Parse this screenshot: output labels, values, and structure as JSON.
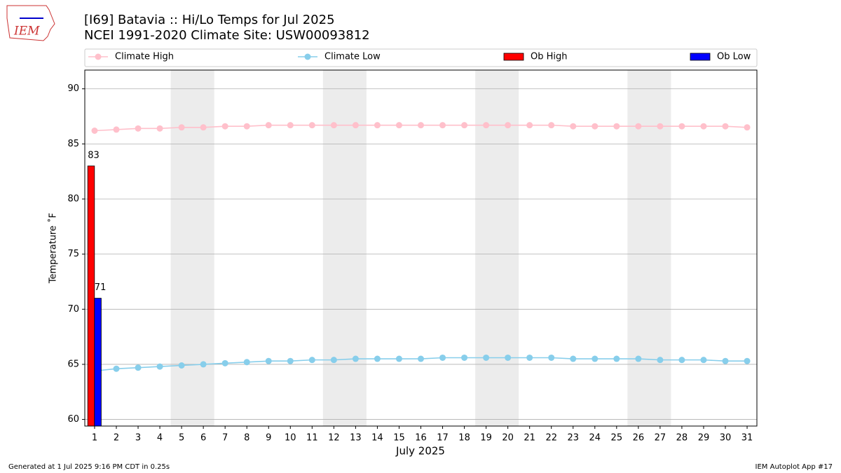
{
  "chart_data": {
    "type": "line_bar",
    "title": "[I69] Batavia :: Hi/Lo Temps for Jul 2025",
    "subtitle": "NCEI 1991-2020 Climate Site: USW00093812",
    "logo_text": "IEM",
    "xlabel": "July 2025",
    "ylabel": "Temperature ˚F",
    "footer_left": "Generated at 1 Jul 2025 9:16 PM CDT in 0.25s",
    "footer_right": "IEM Autoplot App #17",
    "x": [
      1,
      2,
      3,
      4,
      5,
      6,
      7,
      8,
      9,
      10,
      11,
      12,
      13,
      14,
      15,
      16,
      17,
      18,
      19,
      20,
      21,
      22,
      23,
      24,
      25,
      26,
      27,
      28,
      29,
      30,
      31
    ],
    "xlim": [
      0.55,
      31.45
    ],
    "xticks": [
      1,
      2,
      3,
      4,
      5,
      6,
      7,
      8,
      9,
      10,
      11,
      12,
      13,
      14,
      15,
      16,
      17,
      18,
      19,
      20,
      21,
      22,
      23,
      24,
      25,
      26,
      27,
      28,
      29,
      30,
      31
    ],
    "ylim": [
      59.4,
      91.7
    ],
    "yticks": [
      60,
      65,
      70,
      75,
      80,
      85,
      90
    ],
    "grid": true,
    "shaded_x": [
      [
        4.5,
        6.5
      ],
      [
        11.5,
        13.5
      ],
      [
        18.5,
        20.5
      ],
      [
        25.5,
        27.5
      ]
    ],
    "series": [
      {
        "name": "Climate High",
        "kind": "line",
        "color": "#ffc0cb",
        "values": [
          86.2,
          86.3,
          86.4,
          86.4,
          86.5,
          86.5,
          86.6,
          86.6,
          86.7,
          86.7,
          86.7,
          86.7,
          86.7,
          86.7,
          86.7,
          86.7,
          86.7,
          86.7,
          86.7,
          86.7,
          86.7,
          86.7,
          86.6,
          86.6,
          86.6,
          86.6,
          86.6,
          86.6,
          86.6,
          86.6,
          86.5
        ]
      },
      {
        "name": "Climate Low",
        "kind": "line",
        "color": "#87ceeb",
        "values": [
          64.4,
          64.6,
          64.7,
          64.8,
          64.9,
          65.0,
          65.1,
          65.2,
          65.3,
          65.3,
          65.4,
          65.4,
          65.5,
          65.5,
          65.5,
          65.5,
          65.6,
          65.6,
          65.6,
          65.6,
          65.6,
          65.6,
          65.5,
          65.5,
          65.5,
          65.5,
          65.4,
          65.4,
          65.4,
          65.3,
          65.3
        ]
      },
      {
        "name": "Ob High",
        "kind": "bar",
        "color": "#ff0000",
        "values": [
          83,
          null,
          null,
          null,
          null,
          null,
          null,
          null,
          null,
          null,
          null,
          null,
          null,
          null,
          null,
          null,
          null,
          null,
          null,
          null,
          null,
          null,
          null,
          null,
          null,
          null,
          null,
          null,
          null,
          null,
          null
        ]
      },
      {
        "name": "Ob Low",
        "kind": "bar",
        "color": "#0000ff",
        "values": [
          71,
          null,
          null,
          null,
          null,
          null,
          null,
          null,
          null,
          null,
          null,
          null,
          null,
          null,
          null,
          null,
          null,
          null,
          null,
          null,
          null,
          null,
          null,
          null,
          null,
          null,
          null,
          null,
          null,
          null,
          null
        ]
      }
    ]
  }
}
